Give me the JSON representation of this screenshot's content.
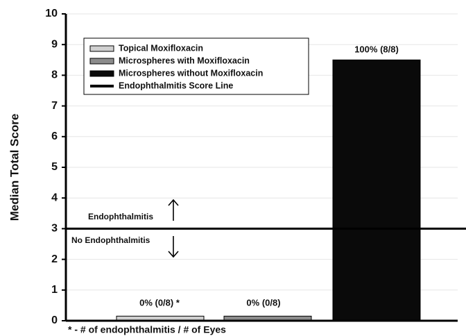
{
  "chart_data": {
    "type": "bar",
    "y_label": "Median Total Score",
    "categories": [
      null,
      null,
      null
    ],
    "values": [
      0.15,
      0.15,
      8.5
    ],
    "colors": [
      "#d0d0d0",
      "#8c8c8c",
      "#0a0a0a"
    ],
    "legend": [
      "Topical Moxifloxacin",
      "Microspheres with Moxifloxacin",
      "Microspheres without Moxifloxacin",
      "Endophthalmitis Score Line"
    ],
    "reference_line": {
      "value": 3,
      "color": "#000000"
    },
    "annotations": [
      "0% (0/8) *",
      "0% (0/8)",
      "100% (8/8)",
      "Endophthalmitis",
      "No Endophthalmitis",
      "* - # of endophthalmitis / # of Eyes"
    ],
    "ylim": [
      0,
      10
    ],
    "yticks": [
      0,
      1,
      2,
      3,
      4,
      5,
      6,
      7,
      8,
      9,
      10
    ],
    "grid": true
  }
}
